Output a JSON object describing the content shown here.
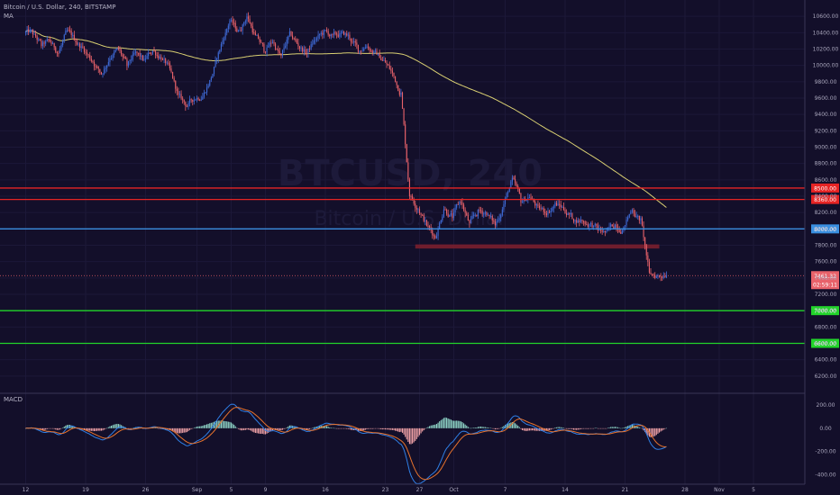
{
  "header": {
    "symbol_line": "Bitcoin / U.S. Dollar, 240, BITSTAMP",
    "indicator": "MA"
  },
  "watermark": {
    "symbol": "BTCUSD, 240",
    "description": "Bitcoin / U.S. Dollar"
  },
  "macd": {
    "label": "MACD"
  },
  "colors": {
    "background": "#130f2a",
    "up": "#3f6bd8",
    "down": "#e8626a",
    "ma": "#d9cf72",
    "resistance": "#e62424",
    "pivot": "#3a8fe0",
    "support": "#22d42a",
    "zone": "#7a1f2e",
    "macd_line": "#2f7fe6",
    "signal_line": "#e8732d",
    "hist_up": "#8fd6c8",
    "hist_down": "#f2a3a8"
  },
  "chart_data": {
    "type": "candlestick",
    "title": "Bitcoin / U.S. Dollar, 240, BITSTAMP",
    "ylim": [
      6000,
      10800
    ],
    "y_ticks": [
      "10600.00",
      "10400.00",
      "10200.00",
      "10000.00",
      "9800.00",
      "9600.00",
      "9400.00",
      "9200.00",
      "9000.00",
      "8800.00",
      "8600.00",
      "8400.00",
      "8200.00",
      "8000.00",
      "7800.00",
      "7600.00",
      "7400.00",
      "7200.00",
      "7000.00",
      "6800.00",
      "6600.00",
      "6400.00",
      "6200.00"
    ],
    "x_ticks": [
      {
        "label": "12",
        "t": 0
      },
      {
        "label": "19",
        "t": 7
      },
      {
        "label": "26",
        "t": 14
      },
      {
        "label": "Sep",
        "t": 20
      },
      {
        "label": "5",
        "t": 24
      },
      {
        "label": "9",
        "t": 28
      },
      {
        "label": "16",
        "t": 35
      },
      {
        "label": "23",
        "t": 42
      },
      {
        "label": "27",
        "t": 46
      },
      {
        "label": "Oct",
        "t": 50
      },
      {
        "label": "7",
        "t": 56
      },
      {
        "label": "14",
        "t": 63
      },
      {
        "label": "21",
        "t": 70
      },
      {
        "label": "28",
        "t": 77
      },
      {
        "label": "Nov",
        "t": 81
      },
      {
        "label": "5",
        "t": 85
      }
    ],
    "x_range_days": [
      -3,
      91
    ],
    "daily_close": [
      10400,
      10250,
      10300,
      10150,
      10420,
      10300,
      10200,
      10050,
      9900,
      10100,
      10200,
      10000,
      10150,
      10050,
      10180,
      10100,
      9950,
      9620,
      9500,
      9600,
      9650,
      9900,
      10250,
      10550,
      10400,
      10600,
      10350,
      10200,
      10300,
      10100,
      10380,
      10250,
      10150,
      10320,
      10400,
      10350,
      10380,
      10350,
      10200,
      10250,
      10150,
      10050,
      9900,
      9650,
      8420,
      8250,
      8050,
      7900,
      8250,
      8150,
      8350,
      8050,
      8200,
      8200,
      8050,
      8300,
      8600,
      8350,
      8400,
      8250,
      8200,
      8300,
      8250,
      8150,
      8100,
      8050,
      8000,
      7950,
      8050,
      8000,
      8250,
      8100,
      7450,
      7420,
      7450
    ],
    "candles_per_day": 6,
    "price_labels": {
      "current": "7461.32",
      "countdown": "02:59:11"
    },
    "levels": [
      {
        "name": "resistance-8500",
        "value": 8500,
        "label": "8500.00",
        "color": "#e62424"
      },
      {
        "name": "resistance-8360",
        "value": 8360,
        "label": "8360.00",
        "color": "#e62424"
      },
      {
        "name": "pivot-8000",
        "value": 8000,
        "label": "8000.00",
        "color": "#3a8fe0"
      },
      {
        "name": "support-7000",
        "value": 7000,
        "label": "7000.00",
        "color": "#22d42a"
      },
      {
        "name": "support-6600",
        "value": 6600,
        "label": "6600.00",
        "color": "#22d42a"
      }
    ],
    "zone": {
      "from_day": 45.5,
      "to_day": 74.0,
      "low": 7760,
      "high": 7810
    },
    "macd_ylim": [
      -480,
      300
    ],
    "macd_ticks": [
      "200.00",
      "0.00",
      "-200.00",
      "-400.00"
    ]
  }
}
